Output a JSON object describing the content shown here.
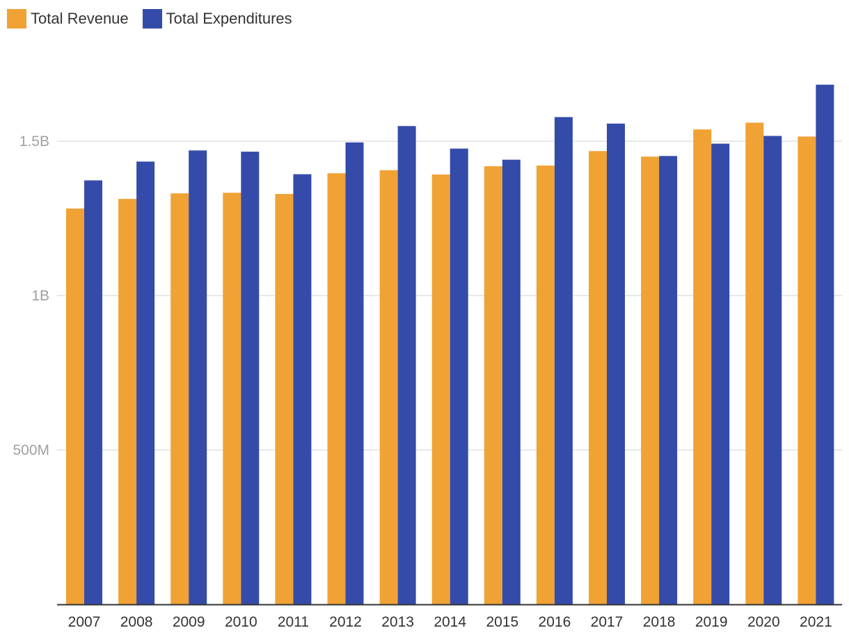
{
  "chart_data": {
    "type": "bar",
    "title": "",
    "xlabel": "",
    "ylabel": "",
    "categories": [
      "2007",
      "2008",
      "2009",
      "2010",
      "2011",
      "2012",
      "2013",
      "2014",
      "2015",
      "2016",
      "2017",
      "2018",
      "2019",
      "2020",
      "2021"
    ],
    "series": [
      {
        "name": "Total Revenue",
        "color": "#f0a235",
        "values": [
          1282000000,
          1313000000,
          1331000000,
          1333000000,
          1329000000,
          1396000000,
          1406000000,
          1392000000,
          1419000000,
          1421000000,
          1468000000,
          1450000000,
          1538000000,
          1560000000,
          1515000000
        ]
      },
      {
        "name": "Total Expenditures",
        "color": "#354baa",
        "values": [
          1373000000,
          1434000000,
          1470000000,
          1466000000,
          1393000000,
          1496000000,
          1549000000,
          1476000000,
          1440000000,
          1578000000,
          1557000000,
          1452000000,
          1492000000,
          1517000000,
          1683000000
        ]
      }
    ],
    "ylim": [
      0,
      1800000000
    ],
    "yticks": [
      {
        "value": 500000000,
        "label": "500M"
      },
      {
        "value": 1000000000,
        "label": "1B"
      },
      {
        "value": 1500000000,
        "label": "1.5B"
      }
    ],
    "grid": true,
    "legend_position": "top-left"
  }
}
